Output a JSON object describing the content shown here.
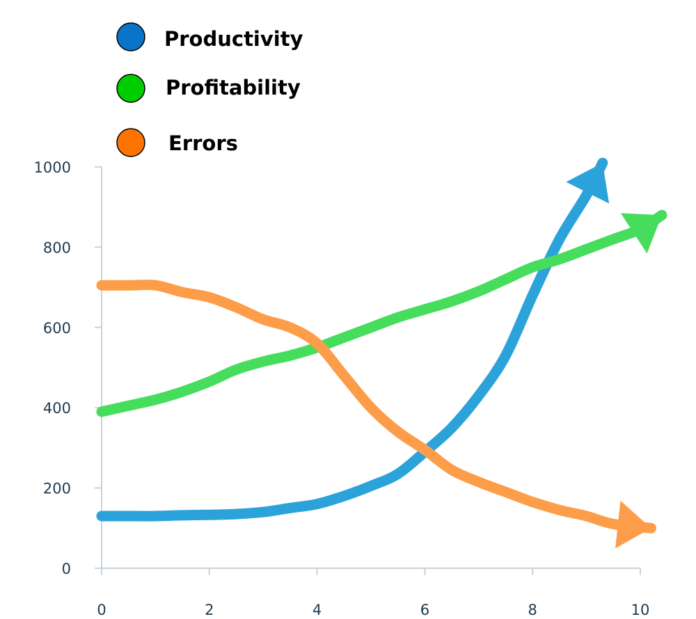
{
  "chart_data": {
    "type": "line",
    "title": "",
    "xlabel": "",
    "ylabel": "",
    "xlim": [
      0,
      10
    ],
    "ylim": [
      0,
      1000
    ],
    "x_ticks": [
      "0",
      "2",
      "4",
      "6",
      "8",
      "10"
    ],
    "y_ticks": [
      "0",
      "200",
      "400",
      "600",
      "800",
      "1000"
    ],
    "grid": false,
    "legend_position": "top-left",
    "legend": [
      {
        "name": "Productivity",
        "marker_color": "#0a74c9"
      },
      {
        "name": "Profitability",
        "marker_color": "#00cc00"
      },
      {
        "name": "Errors",
        "marker_color": "#ff7300"
      }
    ],
    "series": [
      {
        "name": "Productivity",
        "color": "#2ba3da",
        "arrow": true,
        "x": [
          0,
          0.5,
          1,
          1.5,
          2,
          2.5,
          3,
          3.5,
          4,
          4.5,
          5,
          5.5,
          6,
          6.5,
          7,
          7.5,
          8,
          8.5,
          9,
          9.3
        ],
        "y": [
          130,
          130,
          130,
          132,
          133,
          135,
          140,
          150,
          160,
          180,
          205,
          235,
          290,
          350,
          430,
          530,
          680,
          820,
          930,
          1010
        ]
      },
      {
        "name": "Profitability",
        "color": "#46dc5c",
        "arrow": true,
        "x": [
          0,
          0.5,
          1,
          1.5,
          2,
          2.5,
          3,
          3.5,
          4,
          4.5,
          5,
          5.5,
          6,
          6.5,
          7,
          7.5,
          8,
          8.5,
          9,
          9.5,
          10,
          10.4
        ],
        "y": [
          390,
          405,
          420,
          440,
          465,
          495,
          515,
          530,
          550,
          575,
          600,
          625,
          645,
          665,
          690,
          720,
          750,
          770,
          795,
          820,
          845,
          880
        ]
      },
      {
        "name": "Errors",
        "color": "#fd9d4a",
        "arrow": true,
        "x": [
          0,
          0.5,
          1,
          1.5,
          2,
          2.5,
          3,
          3.5,
          4,
          4.5,
          5,
          5.5,
          6,
          6.5,
          7,
          7.5,
          8,
          8.5,
          9,
          9.5,
          10.2
        ],
        "y": [
          705,
          705,
          705,
          688,
          675,
          650,
          620,
          600,
          560,
          480,
          400,
          340,
          295,
          245,
          215,
          190,
          165,
          145,
          130,
          110,
          100
        ]
      }
    ]
  }
}
